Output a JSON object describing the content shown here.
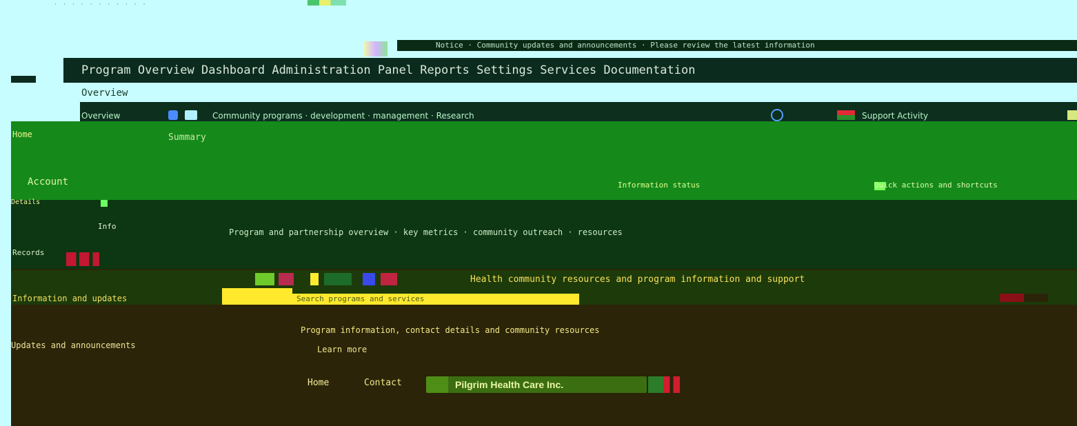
{
  "top_strip": {
    "text": "· · · · · · · · · · ·"
  },
  "notice": {
    "text": "Notice · Community updates and announcements · Please review the latest information"
  },
  "title_bar": {
    "title": "Program Overview Dashboard Administration Panel Reports Settings Services Documentation"
  },
  "sub_header": {
    "label": "Overview"
  },
  "nav": {
    "items": [
      {
        "label": "Overview"
      },
      {
        "label": "Community programs · development · management · Research"
      },
      {
        "label": "Support Activity"
      }
    ]
  },
  "main": {
    "left_label": "Home",
    "subtitle": "Summary",
    "user": "Account",
    "status": "Information status",
    "actions": "Quick actions and shortcuts",
    "mini": "Details"
  },
  "body": {
    "label_a": "Info",
    "text": "Program and partnership overview · key metrics · community outreach · resources",
    "row_2": "Records"
  },
  "bottom": {
    "headline": "Health community resources and program information and support",
    "left": "Information and updates",
    "yellow_field_text": "Search programs and services",
    "line_1": "Program information, contact details and community resources",
    "line_1_left": "Updates and announcements",
    "line_2": "Learn more"
  },
  "footer": {
    "item_1": "Home",
    "item_2": "Contact",
    "pill_text": "Pilgrim Health Care Inc."
  }
}
